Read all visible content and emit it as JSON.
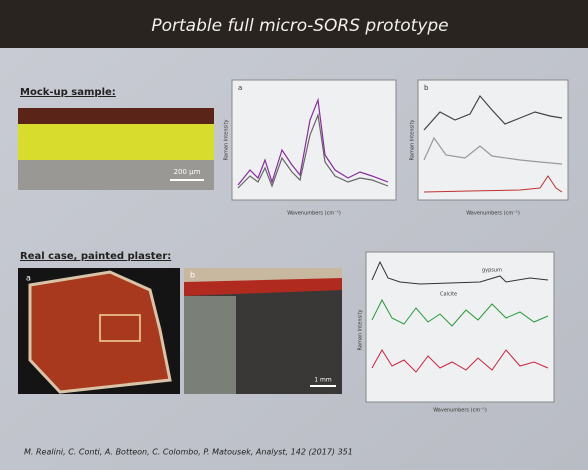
{
  "header": {
    "title": "Portable full micro-SORS prototype"
  },
  "sections": [
    {
      "heading": "Mock-up sample:",
      "scale_bar": "200 µm",
      "plots": [
        {
          "panel": "a",
          "x_label": "Wavenumbers (cm⁻¹)",
          "y_label": "Raman Intensity"
        },
        {
          "panel": "b",
          "x_label": "Wavenumbers (cm⁻¹)",
          "y_label": "Raman Intensity"
        }
      ]
    },
    {
      "heading": "Real case, painted plaster:",
      "panel_a": "a",
      "panel_b": "b",
      "scale_bar": "1 mm",
      "plot": {
        "x_label": "Wavenumbers (cm⁻¹)",
        "y_label": "Raman Intensity",
        "labels": [
          "Calcite",
          "gypsum"
        ]
      }
    }
  ],
  "citation": "M. Realini, C. Conti, A. Botteon, C. Colombo, P. Matousek, Analyst, 142 (2017) 351"
}
